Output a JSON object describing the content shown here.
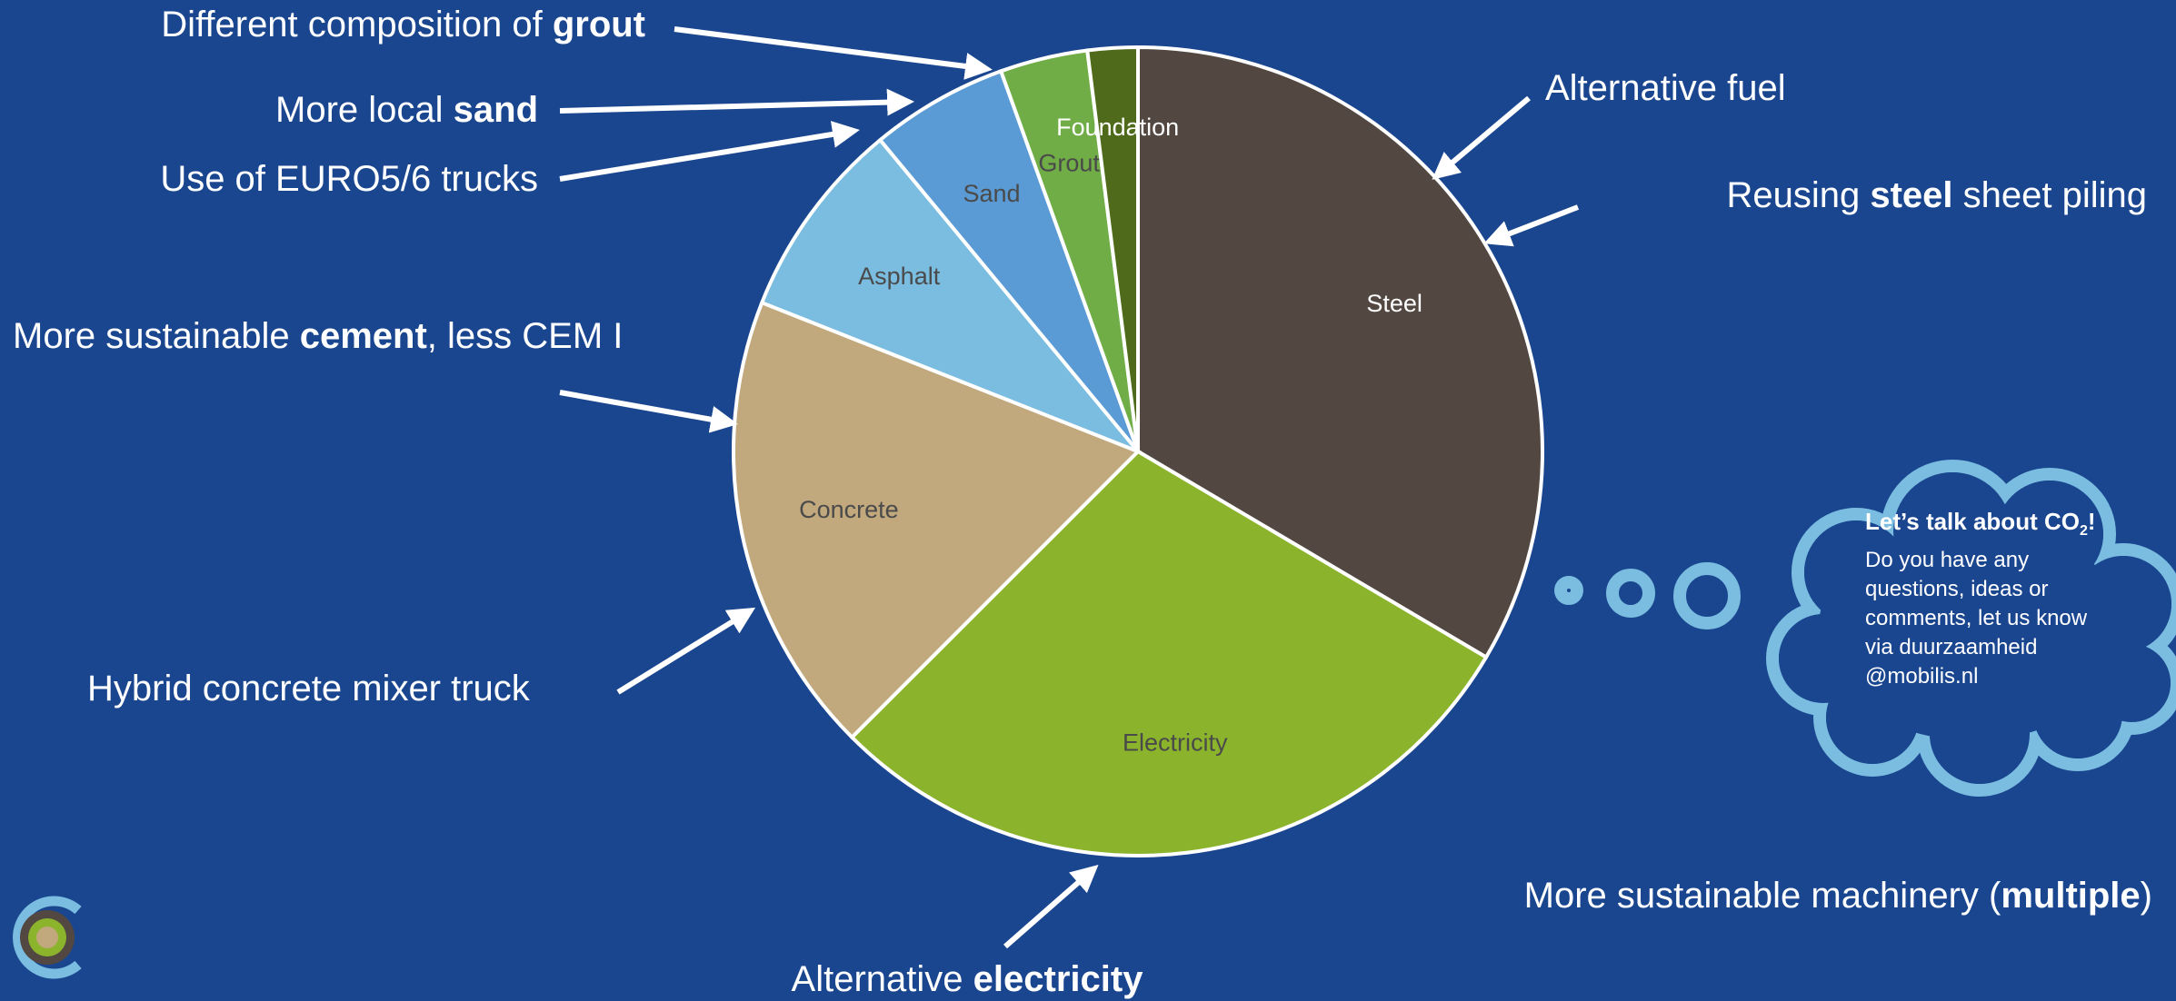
{
  "chart_data": {
    "type": "pie",
    "slices": [
      {
        "label": "Steel",
        "value": 33.5,
        "color": "#524841",
        "label_color": "#ffffff"
      },
      {
        "label": "Electricity",
        "value": 29.0,
        "color": "#8bb42c",
        "label_color": "#4a4a4a"
      },
      {
        "label": "Concrete",
        "value": 18.5,
        "color": "#c1a87d",
        "label_color": "#4a4a4a"
      },
      {
        "label": "Asphalt",
        "value": 8.0,
        "color": "#7abde0",
        "label_color": "#4a4a4a"
      },
      {
        "label": "Sand",
        "value": 5.5,
        "color": "#5b9bd5",
        "label_color": "#4a4a4a"
      },
      {
        "label": "Grout",
        "value": 3.5,
        "color": "#70ad47",
        "label_color": "#4a4a4a"
      },
      {
        "label": "Foundation",
        "value": 2.0,
        "color": "#4e6a1a",
        "label_color": "#ffffff"
      }
    ],
    "start": "top",
    "direction": "clockwise"
  },
  "annotations": {
    "grout": {
      "pre": "Different composition of ",
      "bold": "grout",
      "post": ""
    },
    "sand": {
      "pre": "More local ",
      "bold": "sand",
      "post": ""
    },
    "trucks": {
      "pre": "Use of EURO5/6 trucks",
      "bold": "",
      "post": ""
    },
    "cement": {
      "pre": "More sustainable ",
      "bold": "cement",
      "post": ", less CEM I"
    },
    "mixer": {
      "pre": "Hybrid concrete mixer truck",
      "bold": "",
      "post": ""
    },
    "fuel": {
      "pre": "Alternative fuel",
      "bold": "",
      "post": ""
    },
    "steel": {
      "pre": "Reusing ",
      "bold": "steel",
      "post": " sheet piling"
    },
    "machinery": {
      "pre": "More sustainable machinery (",
      "bold": "multiple",
      "post": ")"
    },
    "electricity": {
      "pre": "Alternative ",
      "bold": "electricity",
      "post": ""
    }
  },
  "callout": {
    "title": "Let’s talk about CO",
    "title_sub": "2",
    "title_end": "!",
    "lines": [
      "Do you have any",
      "questions, ideas or",
      "comments, let us know",
      "via duurzaamheid",
      "@mobilis.nl"
    ]
  },
  "colors": {
    "background": "#1a4690",
    "cloud": "#7abde0",
    "logo_outer": "#7abde0",
    "logo_mid": "#524841",
    "logo_inner": "#8bb42c",
    "logo_core": "#c1a87d"
  }
}
